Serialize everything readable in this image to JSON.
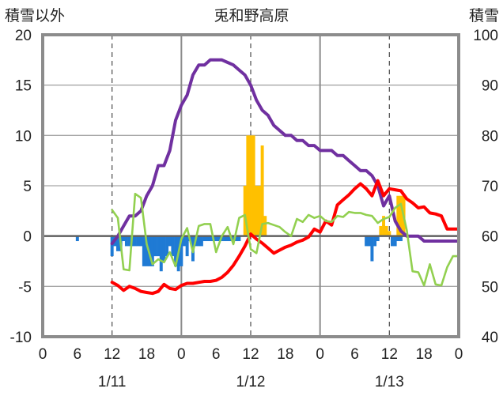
{
  "chart_data": {
    "type": "line",
    "title": "兎和野高原",
    "y_left_label": "積雪以外",
    "y_right_label": "積雪",
    "ylim_left": [
      -10,
      20
    ],
    "ylim_right": [
      40,
      100
    ],
    "y_left_ticks": [
      "20",
      "15",
      "10",
      "5",
      "0",
      "-5",
      "-10"
    ],
    "y_right_ticks": [
      "100",
      "90",
      "80",
      "70",
      "60",
      "50",
      "40"
    ],
    "x_ticks": [
      "0",
      "6",
      "12",
      "18",
      "0",
      "6",
      "12",
      "18",
      "0",
      "6",
      "12",
      "18",
      "0"
    ],
    "dates": [
      "1/11",
      "1/12",
      "1/13"
    ],
    "xlim_hours": [
      0,
      72
    ],
    "grid": {
      "vertical_dashed_hours": [
        12,
        36,
        60
      ],
      "vertical_solid_hours": [
        24,
        48
      ]
    },
    "series": [
      {
        "color": "#7030a0",
        "axis": "right",
        "x": [
          12,
          13,
          14,
          15,
          16,
          17,
          18,
          19,
          20,
          21,
          22,
          23,
          24,
          25,
          26,
          27,
          28,
          29,
          30,
          31,
          32,
          33,
          34,
          35,
          36,
          37,
          38,
          39,
          40,
          41,
          42,
          43,
          44,
          45,
          46,
          47,
          48,
          49,
          50,
          51,
          52,
          53,
          54,
          55,
          56,
          57,
          58,
          59,
          60,
          61,
          62,
          63,
          64,
          65,
          66,
          67,
          68,
          69,
          70,
          71,
          72
        ],
        "values": [
          58.5,
          60,
          62,
          64,
          64,
          65,
          68,
          70,
          74,
          74,
          77,
          83,
          86,
          88,
          92,
          94,
          94,
          95,
          95,
          95,
          94.5,
          94,
          93,
          92,
          90,
          87,
          85,
          84,
          82,
          81,
          80,
          80,
          79,
          79,
          78,
          78,
          77,
          77,
          77,
          76,
          76,
          75,
          74,
          73,
          73,
          72,
          70,
          66,
          68,
          63,
          61,
          60,
          60,
          60,
          59,
          59,
          59,
          59,
          59,
          59,
          59
        ]
      },
      {
        "color": "#ff0000",
        "axis": "left",
        "x": [
          12,
          13,
          14,
          15,
          16,
          17,
          18,
          19,
          20,
          21,
          22,
          23,
          24,
          25,
          26,
          27,
          28,
          29,
          30,
          31,
          32,
          33,
          34,
          35,
          36,
          37,
          38,
          39,
          40,
          41,
          42,
          43,
          44,
          45,
          46,
          47,
          48,
          49,
          50,
          51,
          52,
          53,
          54,
          55,
          56,
          57,
          58,
          59,
          60,
          61,
          62,
          63,
          64,
          65,
          66,
          67,
          68,
          69,
          70,
          71,
          72
        ],
        "values": [
          -4.6,
          -4.9,
          -5.4,
          -5.0,
          -5.2,
          -5.5,
          -5.6,
          -5.7,
          -5.5,
          -4.8,
          -5.2,
          -5.3,
          -4.9,
          -4.7,
          -4.7,
          -4.6,
          -4.5,
          -4.5,
          -4.4,
          -4.1,
          -3.6,
          -2.9,
          -2.0,
          -1.0,
          0.2,
          -0.3,
          -0.7,
          -1.2,
          -1.7,
          -1.4,
          -1.1,
          -0.9,
          -0.6,
          -0.4,
          -0.1,
          0.7,
          0.4,
          1.5,
          1.1,
          3.1,
          3.6,
          4.1,
          4.7,
          5.2,
          4.7,
          4.0,
          5.5,
          4.0,
          4.7,
          4.6,
          4.5,
          3.7,
          3.3,
          2.8,
          2.9,
          2.3,
          2.2,
          2.0,
          0.7,
          0.7,
          0.7
        ]
      },
      {
        "color": "#92d050",
        "axis": "left",
        "x": [
          12,
          13,
          14,
          15,
          16,
          17,
          18,
          19,
          20,
          21,
          22,
          23,
          24,
          25,
          26,
          27,
          28,
          29,
          30,
          31,
          32,
          33,
          34,
          35,
          36,
          37,
          38,
          39,
          40,
          41,
          42,
          43,
          44,
          45,
          46,
          47,
          48,
          49,
          50,
          51,
          52,
          53,
          54,
          55,
          56,
          57,
          58,
          59,
          60,
          61,
          62,
          63,
          64,
          65,
          66,
          67,
          68,
          69,
          70,
          71,
          72
        ],
        "values": [
          2.6,
          1.8,
          -3.3,
          -3.4,
          4.2,
          3.8,
          -0.8,
          -2.8,
          -2.3,
          -2.6,
          -1.6,
          -3.0,
          -0.3,
          0.8,
          -1.6,
          1.0,
          1.2,
          1.2,
          -1.6,
          0.0,
          0.9,
          -0.8,
          1.8,
          2.1,
          -1.3,
          -1.7,
          1.2,
          1.3,
          1.1,
          0.9,
          0.4,
          0.0,
          1.7,
          1.4,
          2.1,
          1.8,
          2.0,
          1.5,
          1.4,
          2.0,
          1.9,
          2.4,
          2.3,
          2.3,
          2.1,
          2.0,
          1.3,
          1.7,
          1.9,
          2.8,
          3.2,
          0.6,
          -3.5,
          -3.6,
          -4.9,
          -2.8,
          -4.8,
          -4.9,
          -3.1,
          -2.0,
          -2.0
        ]
      },
      {
        "type": "bar",
        "color": "#ffc000",
        "axis": "left",
        "x": [
          35,
          35.5,
          36,
          36.5,
          37,
          37.5,
          38,
          38.5,
          58.5,
          59,
          59.5,
          60,
          61.5,
          62,
          62.5
        ],
        "values": [
          5,
          10,
          10,
          10,
          5,
          5,
          9,
          2,
          1,
          2,
          1,
          0.5,
          4,
          4,
          4
        ]
      },
      {
        "type": "bar",
        "color": "#1f7ad4",
        "axis": "left",
        "x": [
          6,
          12,
          12.5,
          13,
          13.5,
          14,
          14.5,
          15,
          15.5,
          16,
          16.5,
          17,
          17.5,
          18,
          18.5,
          19,
          19.5,
          20,
          20.5,
          21,
          21.5,
          22,
          22.5,
          23,
          23.5,
          24,
          24.5,
          25,
          25.5,
          26,
          26.5,
          27,
          27.5,
          28,
          28.5,
          29,
          29.5,
          30,
          30.5,
          31,
          31.5,
          32,
          32.5,
          33,
          33.5,
          34,
          56,
          56.5,
          57,
          57.5,
          58,
          60.5,
          61,
          61.5,
          62
        ],
        "values": [
          -0.5,
          -2,
          -1,
          -1.5,
          -1.5,
          -0.5,
          -1,
          -1,
          -1,
          -1,
          -1,
          -1,
          -3,
          -3,
          -3,
          -3,
          -2,
          -2,
          -3.5,
          -2.5,
          -2,
          -1,
          -2,
          -3,
          -3.5,
          -3,
          -1,
          -2,
          -0.5,
          -2.5,
          -1,
          -1,
          -1,
          -0.5,
          -0.5,
          -0.5,
          -0.5,
          -0.5,
          -0.5,
          -0.5,
          -0.5,
          -0.5,
          -0.5,
          -0.5,
          -0.5,
          -0.5,
          -1,
          -1,
          -2.5,
          -1,
          -0.5,
          -1,
          -1,
          -0.5,
          -0.5
        ]
      }
    ]
  }
}
